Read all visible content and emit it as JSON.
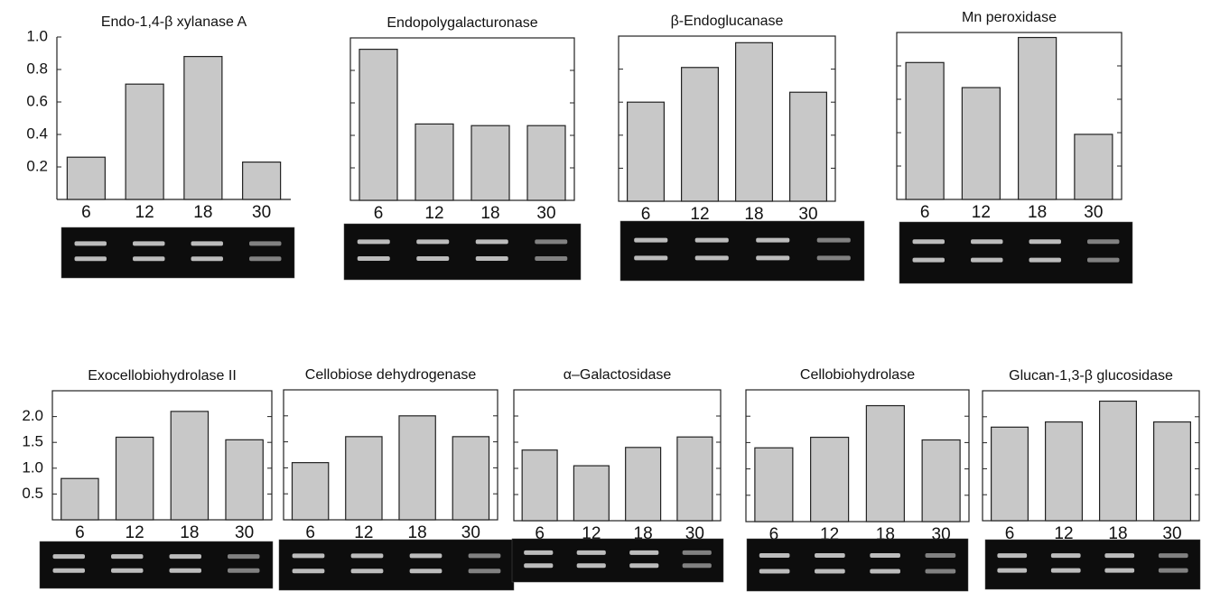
{
  "chart_data": [
    {
      "type": "bar",
      "title": "Endo-1,4-β xylanase A",
      "categories": [
        "6",
        "12",
        "18",
        "30"
      ],
      "values": [
        0.26,
        0.71,
        0.88,
        0.23
      ],
      "color": "#c8c8c8",
      "ylim": [
        0,
        1.0
      ],
      "yticks": [
        0.2,
        0.4,
        0.6,
        {
          "value": 0.8,
          "label": "0.8"
        },
        {
          "value": 1.0,
          "label": "1.0"
        }
      ],
      "tick_labels": true,
      "frame": false
    },
    {
      "type": "bar",
      "title": "Endopolygalacturonase",
      "categories": [
        "6",
        "12",
        "18",
        "30"
      ],
      "values": [
        0.93,
        0.47,
        0.46,
        0.46
      ],
      "color": "#c8c8c8",
      "ylim": [
        0,
        1.0
      ],
      "yticks": [
        0.2,
        0.4,
        0.6,
        0.8
      ],
      "tick_labels": false,
      "frame": true
    },
    {
      "type": "bar",
      "title": "β-Endoglucanase",
      "categories": [
        "6",
        "12",
        "18",
        "30"
      ],
      "values": [
        0.6,
        0.81,
        0.96,
        0.66
      ],
      "color": "#c8c8c8",
      "ylim": [
        0,
        1.0
      ],
      "yticks": [
        0.2,
        0.4,
        0.6,
        0.8
      ],
      "tick_labels": false,
      "frame": true
    },
    {
      "type": "bar",
      "title": "Mn peroxidase",
      "categories": [
        "6",
        "12",
        "18",
        "30"
      ],
      "values": [
        0.82,
        0.67,
        0.97,
        0.39
      ],
      "color": "#c8c8c8",
      "ylim": [
        0,
        1.0
      ],
      "yticks": [
        0.2,
        0.4,
        0.6,
        0.8
      ],
      "tick_labels": false,
      "frame": true
    },
    {
      "type": "bar",
      "title": "Exocellobiohydrolase II",
      "categories": [
        "6",
        "12",
        "18",
        "30"
      ],
      "values": [
        0.8,
        1.6,
        2.1,
        1.55
      ],
      "color": "#c8c8c8",
      "ylim": [
        0,
        2.5
      ],
      "yticks": [
        0.5,
        {
          "value": 1.0,
          "label": "1.0"
        },
        1.5,
        {
          "value": 2.0,
          "label": "2.0"
        }
      ],
      "tick_labels": true,
      "frame": true
    },
    {
      "type": "bar",
      "title": "Cellobiose dehydrogenase",
      "categories": [
        "6",
        "12",
        "18",
        "30"
      ],
      "values": [
        1.1,
        1.6,
        2.0,
        1.6
      ],
      "color": "#c8c8c8",
      "ylim": [
        0,
        2.5
      ],
      "yticks": [
        0.5,
        1.0,
        1.5,
        2.0
      ],
      "tick_labels": false,
      "frame": true
    },
    {
      "type": "bar",
      "title": "α–Galactosidase",
      "categories": [
        "6",
        "12",
        "18",
        "30"
      ],
      "values": [
        1.35,
        1.05,
        1.4,
        1.6
      ],
      "color": "#c8c8c8",
      "ylim": [
        0,
        2.5
      ],
      "yticks": [
        0.5,
        1.0,
        1.5,
        2.0
      ],
      "tick_labels": false,
      "frame": true
    },
    {
      "type": "bar",
      "title": "Cellobiohydrolase",
      "categories": [
        "6",
        "12",
        "18",
        "30"
      ],
      "values": [
        1.4,
        1.6,
        2.2,
        1.55
      ],
      "color": "#c8c8c8",
      "ylim": [
        0,
        2.5
      ],
      "yticks": [
        0.5,
        1.0,
        1.5,
        2.0
      ],
      "tick_labels": false,
      "frame": true
    },
    {
      "type": "bar",
      "title": "Glucan-1,3-β glucosidase",
      "categories": [
        "6",
        "12",
        "18",
        "30"
      ],
      "values": [
        1.8,
        1.9,
        2.3,
        1.9
      ],
      "color": "#c8c8c8",
      "ylim": [
        0,
        2.5
      ],
      "yticks": [
        0.5,
        1.0,
        1.5,
        2.0
      ],
      "tick_labels": false,
      "frame": true
    }
  ]
}
